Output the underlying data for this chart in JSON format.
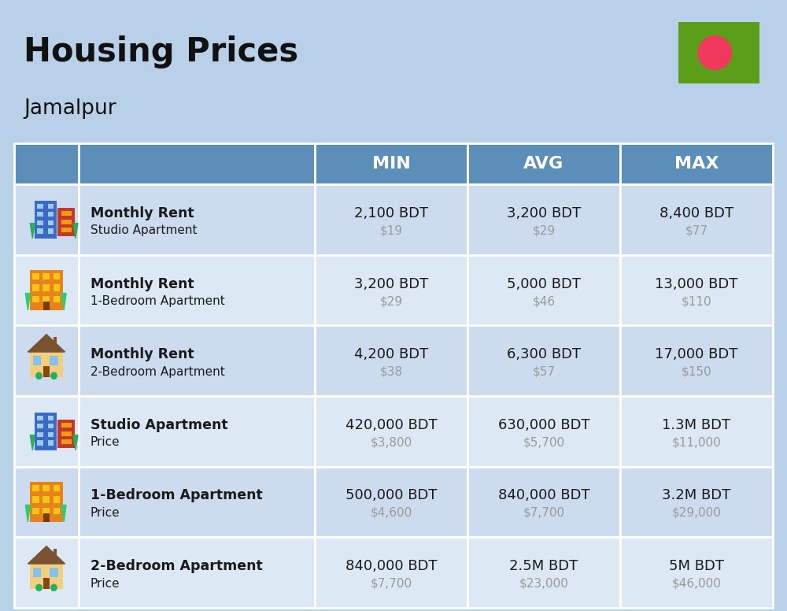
{
  "title": "Housing Prices",
  "subtitle": "Jamalpur",
  "bg_color": "#b8d0e8",
  "header_color": "#5b8fba",
  "header_text_color": "#ffffff",
  "row_bg_colors": [
    "#ccdcee",
    "#dce8f4"
  ],
  "col_headers": [
    "MIN",
    "AVG",
    "MAX"
  ],
  "rows": [
    {
      "label_bold": "Monthly Rent",
      "label_sub": "Studio Apartment",
      "emoji": "studio_blue",
      "min_bdt": "2,100 BDT",
      "min_usd": "$19",
      "avg_bdt": "3,200 BDT",
      "avg_usd": "$29",
      "max_bdt": "8,400 BDT",
      "max_usd": "$77"
    },
    {
      "label_bold": "Monthly Rent",
      "label_sub": "1-Bedroom Apartment",
      "emoji": "apartment_orange",
      "min_bdt": "3,200 BDT",
      "min_usd": "$29",
      "avg_bdt": "5,000 BDT",
      "avg_usd": "$46",
      "max_bdt": "13,000 BDT",
      "max_usd": "$110"
    },
    {
      "label_bold": "Monthly Rent",
      "label_sub": "2-Bedroom Apartment",
      "emoji": "house_beige",
      "min_bdt": "4,200 BDT",
      "min_usd": "$38",
      "avg_bdt": "6,300 BDT",
      "avg_usd": "$57",
      "max_bdt": "17,000 BDT",
      "max_usd": "$150"
    },
    {
      "label_bold": "Studio Apartment",
      "label_sub": "Price",
      "emoji": "studio_blue2",
      "min_bdt": "420,000 BDT",
      "min_usd": "$3,800",
      "avg_bdt": "630,000 BDT",
      "avg_usd": "$5,700",
      "max_bdt": "1.3M BDT",
      "max_usd": "$11,000"
    },
    {
      "label_bold": "1-Bedroom Apartment",
      "label_sub": "Price",
      "emoji": "apartment_orange2",
      "min_bdt": "500,000 BDT",
      "min_usd": "$4,600",
      "avg_bdt": "840,000 BDT",
      "avg_usd": "$7,700",
      "max_bdt": "3.2M BDT",
      "max_usd": "$29,000"
    },
    {
      "label_bold": "2-Bedroom Apartment",
      "label_sub": "Price",
      "emoji": "house_beige2",
      "min_bdt": "840,000 BDT",
      "min_usd": "$7,700",
      "avg_bdt": "2.5M BDT",
      "avg_usd": "$23,000",
      "max_bdt": "5M BDT",
      "max_usd": "$46,000"
    }
  ],
  "flag_green": "#5a9e1a",
  "flag_red": "#f0395a",
  "cell_text_color": "#1a1a1a",
  "usd_text_color": "#999999"
}
